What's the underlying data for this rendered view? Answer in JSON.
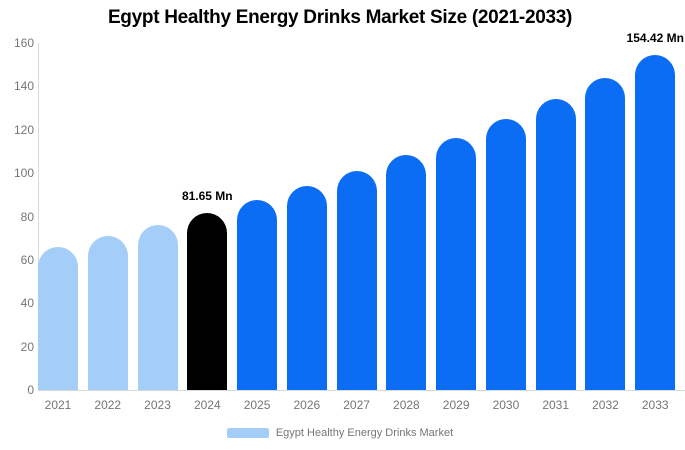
{
  "title": "Egypt Healthy Energy Drinks Market Size (2021-2033)",
  "chart_data": {
    "type": "bar",
    "title": "Egypt Healthy Energy Drinks Market Size (2021-2033)",
    "categories": [
      "2021",
      "2022",
      "2023",
      "2024",
      "2025",
      "2026",
      "2027",
      "2028",
      "2029",
      "2030",
      "2031",
      "2032",
      "2033"
    ],
    "values": [
      66.03,
      70.88,
      76.08,
      81.65,
      87.64,
      94.08,
      100.98,
      108.39,
      116.35,
      124.89,
      134.06,
      143.9,
      154.42
    ],
    "bar_colors": [
      "#a4cdf8",
      "#a4cdf8",
      "#a4cdf8",
      "#000000",
      "#0b6cf4",
      "#0b6cf4",
      "#0b6cf4",
      "#0b6cf4",
      "#0b6cf4",
      "#0b6cf4",
      "#0b6cf4",
      "#0b6cf4",
      "#0b6cf4"
    ],
    "annotations": [
      {
        "category": "2024",
        "label": "81.65 Mn"
      },
      {
        "category": "2033",
        "label": "154.42 Mn"
      }
    ],
    "xlabel": "",
    "ylabel": "",
    "ylim": [
      0,
      160
    ],
    "yticks": [
      0,
      20,
      40,
      60,
      80,
      100,
      120,
      140,
      160
    ],
    "grid": false,
    "legend_position": "bottom-center",
    "legend": {
      "label": "Egypt Healthy Energy Drinks Market",
      "swatch_color": "#a4cdf8"
    },
    "colors": {
      "light_blue": "#a4cdf8",
      "blue": "#0b6cf4",
      "black": "#000000",
      "axis_line": "#d9d9d9",
      "tick_text": "#757575",
      "background": "#ffffff"
    }
  }
}
